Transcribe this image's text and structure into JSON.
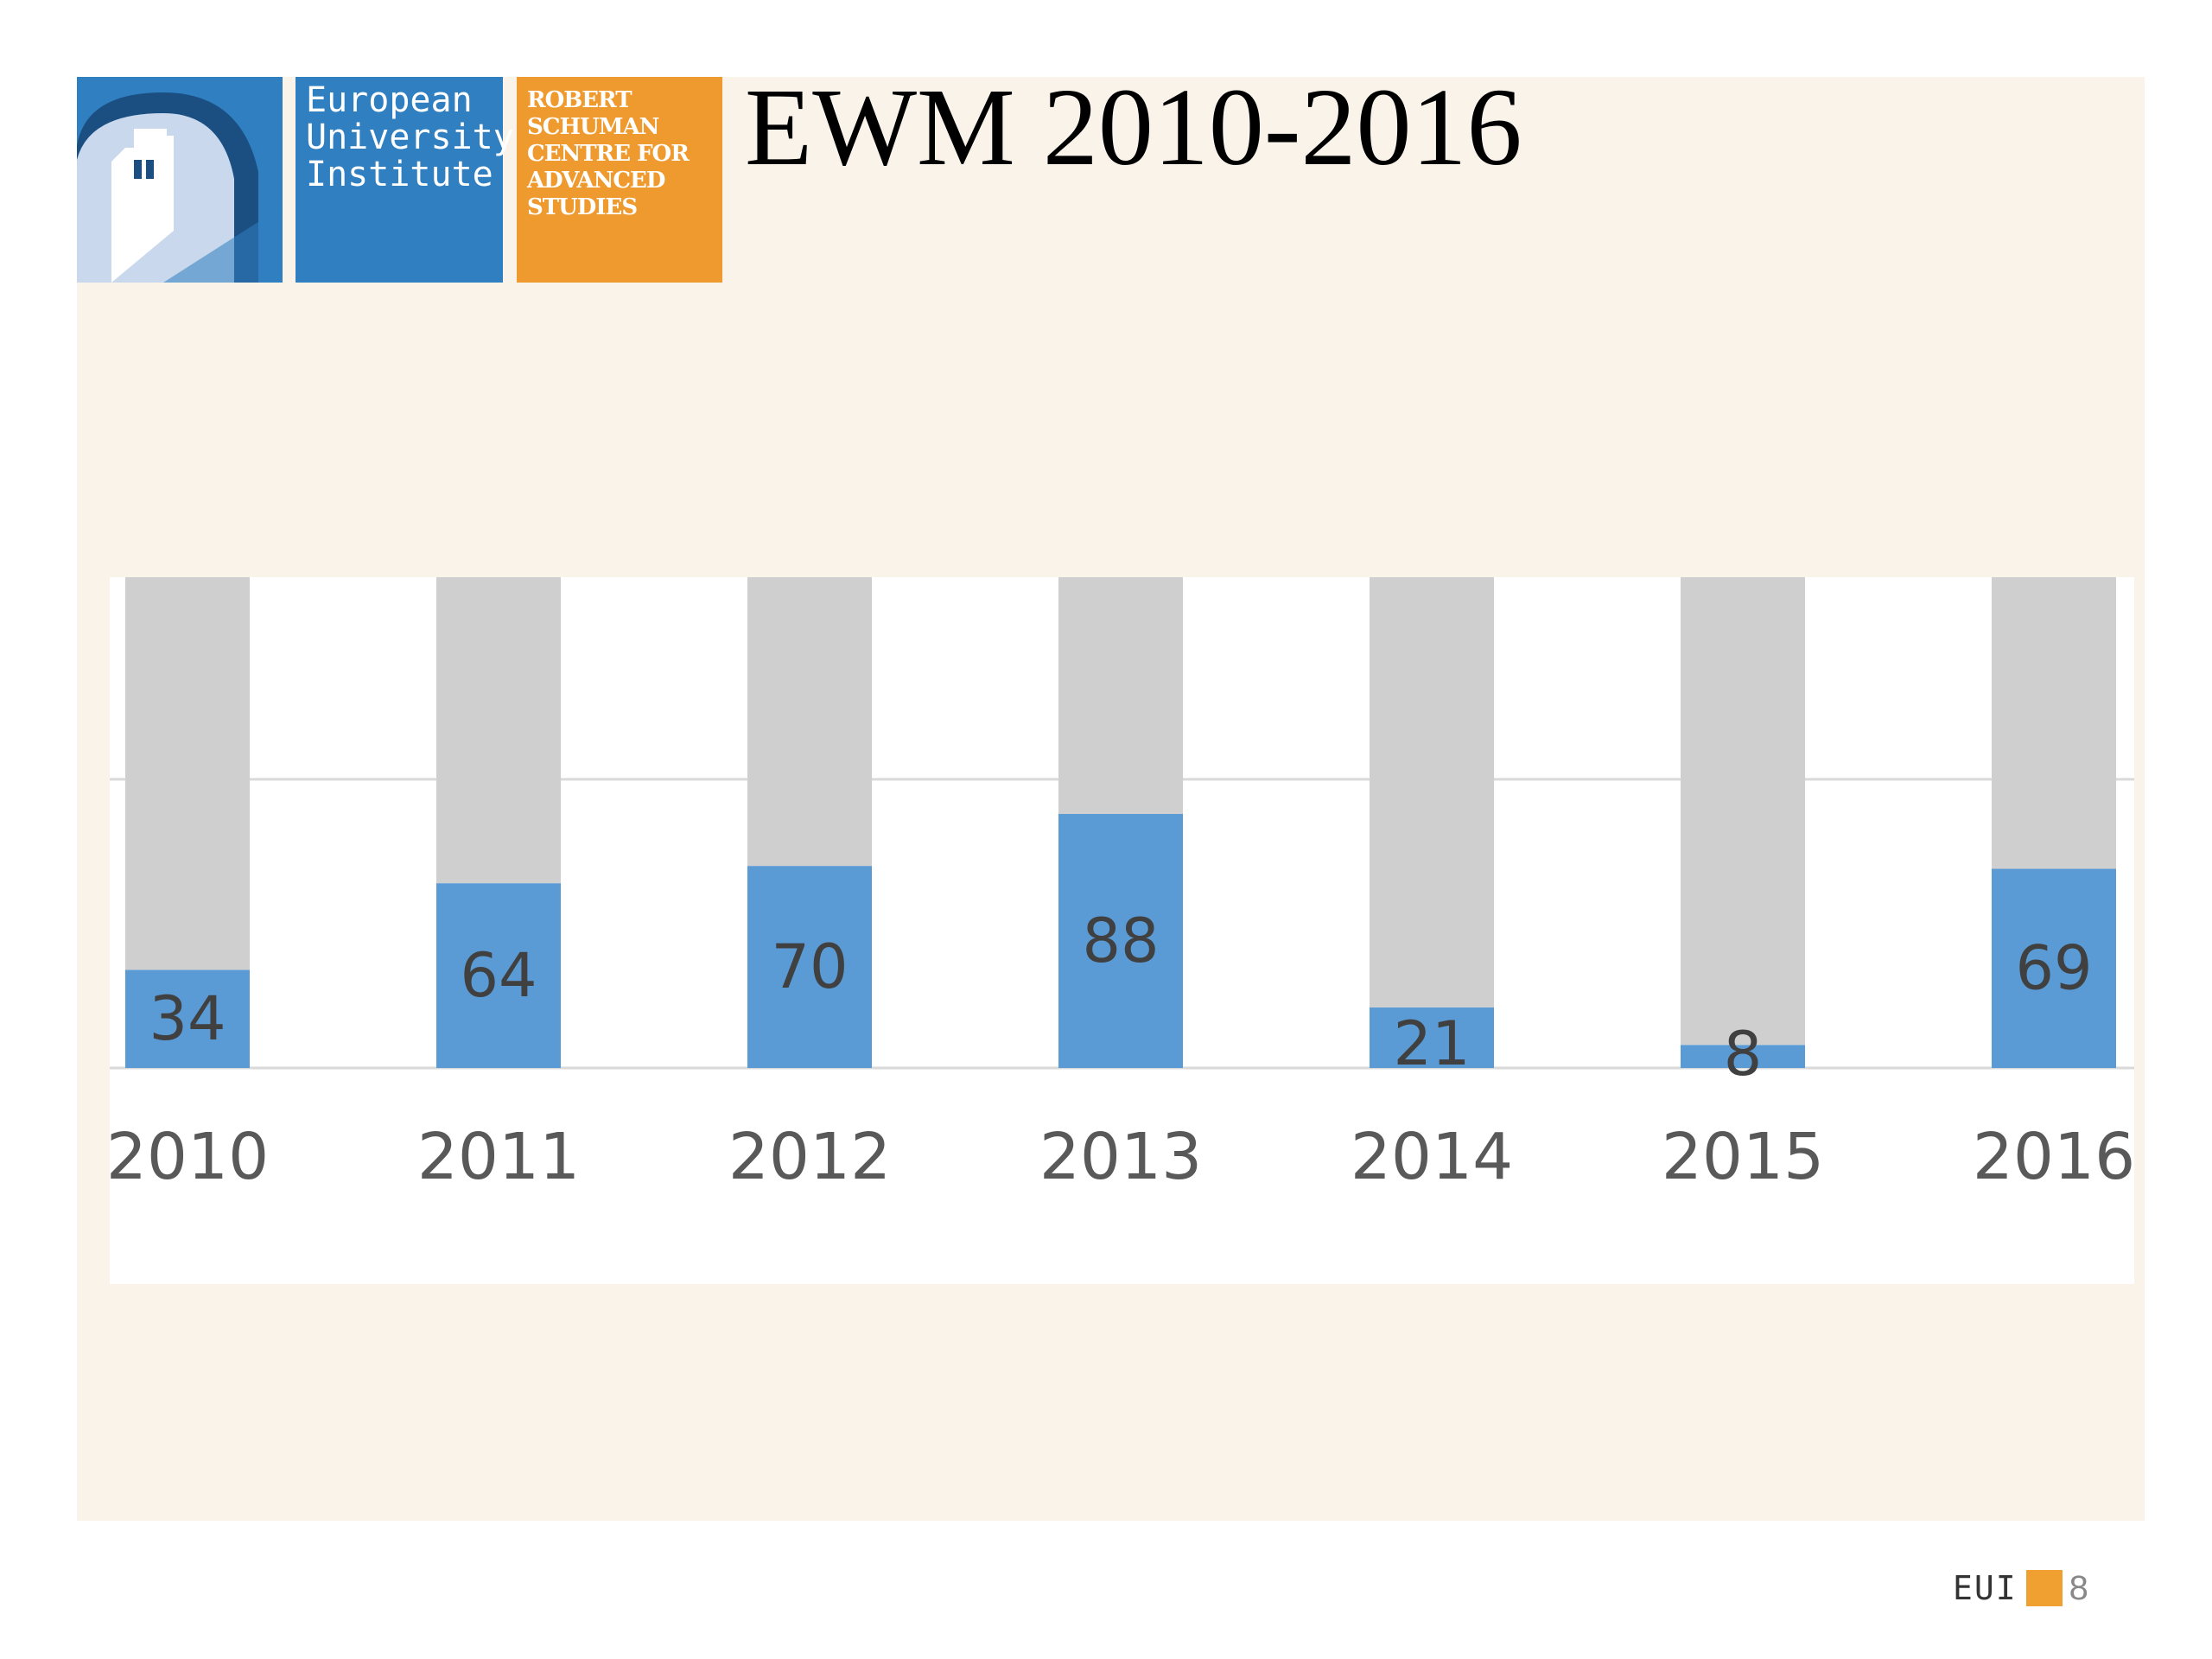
{
  "slide": {
    "title": "EWM 2010-2016",
    "logo": {
      "institution_lines": [
        "European",
        "University",
        "Institute"
      ],
      "centre_lines": [
        "ROBERT",
        "SCHUMAN",
        "CENTRE FOR",
        "ADVANCED",
        "STUDIES"
      ]
    },
    "footer": {
      "brand": "EUI",
      "page_number": "8"
    }
  },
  "colors": {
    "value_bar": "#5b9bd5",
    "remainder_bar": "#d0cfcf",
    "label_text": "#404040",
    "axis_text": "#595959",
    "gridline": "#d9d9d9",
    "brand_blue": "#2f7fc1",
    "brand_orange": "#ef9a2e"
  },
  "chart_data": {
    "type": "bar",
    "stacked": true,
    "categories": [
      "2010",
      "2011",
      "2012",
      "2013",
      "2014",
      "2015",
      "2016"
    ],
    "values": [
      34,
      64,
      70,
      88,
      21,
      8,
      69
    ],
    "series": [
      {
        "values": [
          34,
          64,
          70,
          88,
          21,
          8,
          69
        ],
        "color": "#5b9bd5"
      },
      {
        "values": [
          136,
          106,
          100,
          82,
          149,
          162,
          101
        ],
        "color": "#d0cfcf"
      }
    ],
    "ylim": [
      0,
      170
    ],
    "gridlines": [
      0,
      100
    ],
    "data_labels": [
      "34",
      "64",
      "70",
      "88",
      "21",
      "8",
      "69"
    ],
    "title": "",
    "xlabel": "",
    "ylabel": "",
    "legend": "none"
  }
}
